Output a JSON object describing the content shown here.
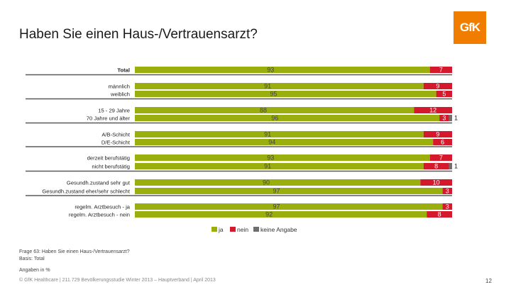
{
  "title": "Haben Sie einen Haus-/Vertrauensarzt?",
  "logo_text": "GfK",
  "frage_line1": "Frage 63: Haben Sie einen Haus-/Vertrauensarzt?",
  "frage_line2": "Basis: Total",
  "angaben": "Angaben in %",
  "footer": "© GfK Healthcare | 211.729 Bevölkerungsstudie Winter 2013 – Hauptverband | April 2013",
  "page_number": "12",
  "colors": {
    "ja": "#9aaf0e",
    "nein": "#d5192c",
    "keine": "#6f6f6f",
    "separator": "#5a5a5a"
  },
  "chart_data": {
    "type": "bar",
    "orientation": "horizontal-stacked",
    "title": "Haben Sie einen Haus-/Vertrauensarzt?",
    "xlim": [
      0,
      100
    ],
    "legend": [
      "ja",
      "nein",
      "keine Angabe"
    ],
    "legend_position": "bottom-center",
    "categories": [
      "Total",
      "männlich",
      "weiblich",
      "15 - 29 Jahre",
      "70 Jahre und älter",
      "A/B-Schicht",
      "D/E-Schicht",
      "derzeit berufstätig",
      "nicht berufstätig",
      "Gesundh.zustand sehr gut",
      "Gesundh.zustand eher/sehr schlecht",
      "regelm. Arztbesuch - ja",
      "regelm. Arztbesuch - nein"
    ],
    "series": [
      {
        "name": "ja",
        "values": [
          93,
          91,
          95,
          88,
          96,
          91,
          94,
          93,
          91,
          90,
          97,
          97,
          92
        ]
      },
      {
        "name": "nein",
        "values": [
          7,
          9,
          5,
          12,
          3,
          9,
          6,
          7,
          8,
          10,
          3,
          3,
          8
        ]
      },
      {
        "name": "keine Angabe",
        "values": [
          0,
          0,
          0,
          0,
          1,
          0,
          0,
          0,
          1,
          0,
          0,
          0,
          0
        ]
      }
    ]
  }
}
